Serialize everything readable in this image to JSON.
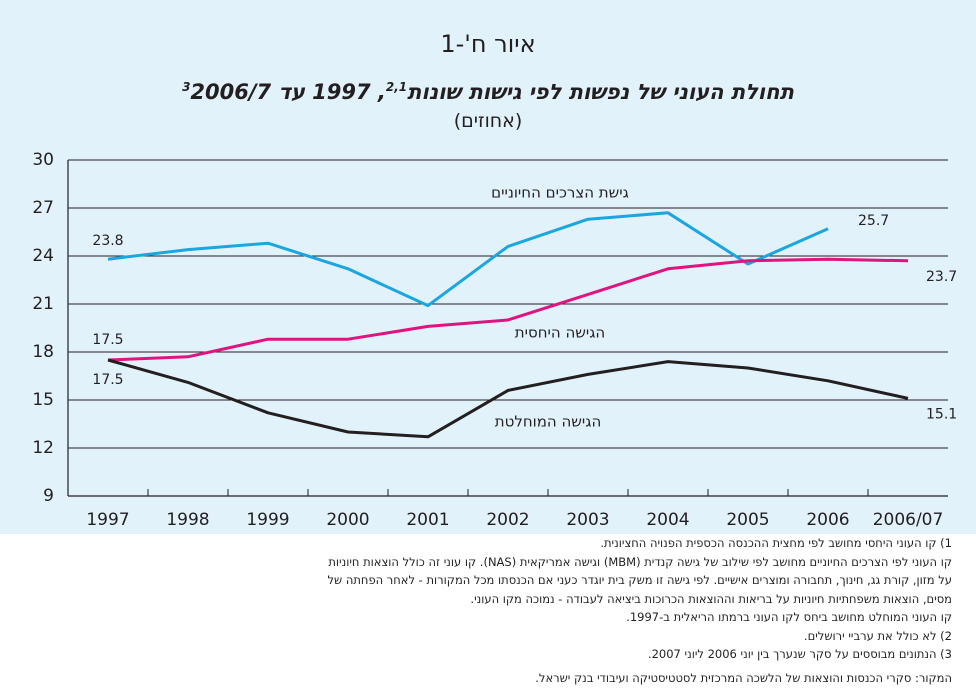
{
  "chart_data": {
    "type": "line",
    "title": "איור ח'-1",
    "subtitle": [
      "תחולת העוני של נפשות לפי גישות שונות",
      "2,1",
      ", 1997 עד 2006/7",
      "3"
    ],
    "unit": "(אחוזים)",
    "categories": [
      "1997",
      "1998",
      "1999",
      "2000",
      "2001",
      "2002",
      "2003",
      "2004",
      "2005",
      "2006",
      "2006/07"
    ],
    "series": [
      {
        "name": "גישת הצרכים החיוניים",
        "color": "#1ba6e0",
        "values": [
          23.8,
          24.4,
          24.8,
          23.2,
          20.9,
          24.6,
          26.3,
          26.7,
          23.5,
          25.7,
          null
        ],
        "value_labels": [
          "23.8",
          null,
          null,
          null,
          null,
          null,
          null,
          null,
          null,
          "25.7",
          null
        ]
      },
      {
        "name": "הגישה היחסית",
        "color": "#e0147f",
        "values": [
          17.5,
          17.7,
          18.8,
          18.8,
          19.6,
          20.0,
          21.6,
          23.2,
          23.7,
          23.8,
          23.7
        ],
        "value_labels": [
          "17.5",
          null,
          null,
          null,
          null,
          null,
          null,
          null,
          null,
          null,
          "23.7"
        ]
      },
      {
        "name": "הגישה המוחלטת",
        "color": "#231f20",
        "values": [
          17.5,
          16.1,
          14.2,
          13.0,
          12.7,
          15.6,
          16.6,
          17.4,
          17.0,
          16.2,
          15.1
        ],
        "value_labels": [
          "17.5",
          null,
          null,
          null,
          null,
          null,
          null,
          null,
          null,
          null,
          "15.1"
        ]
      }
    ],
    "ylim": [
      9,
      30
    ],
    "yticks": [
      9,
      12,
      15,
      18,
      21,
      24,
      27,
      30
    ],
    "grid": true,
    "notes": [
      "1) קו העוני היחסי מחושב לפי מחצית ההכנסה הכספית הפנויה החציונית.",
      "קו העוני לפי הצרכים החיוניים מחושב לפי שילוב של גישה קנדית (MBM) וגישה אמריקאית (NAS). קו עוני זה כולל הוצאות חיוניות",
      "על מזון, קורת גג, חינוך, תחבורה ומוצרים אישיים. לפי גישה זו משק בית יוגדר כעני אם הכנסתו מכל המקורות - לאחר הפחתה של",
      "מסים, הוצאות משפחתיות חיוניות על בריאות וההוצאות הכרוכות ביציאה לעבודה - נמוכה מקו העוני.",
      "קו העוני המוחלט מחושב ביחס לקו העוני ברמתו הריאלית ב-1997.",
      "2) לא כולל את ערביי ירושלים.",
      "3) הנתונים מבוססים על סקר שנערך בין יוני 2006 ליוני 2007.",
      "המקור: סקרי הכנסות והוצאות של הלשכה המרכזית לסטטיסטיקה ועיבודי בנק ישראל."
    ]
  }
}
